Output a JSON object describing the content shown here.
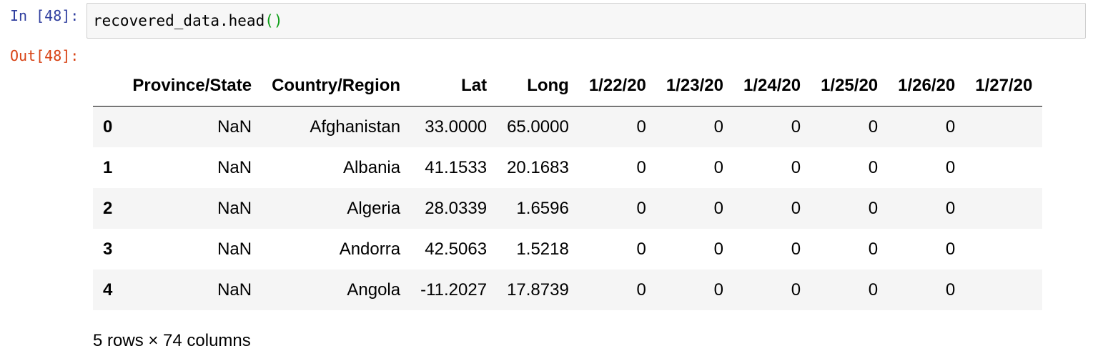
{
  "input_prompt": "In [48]:",
  "output_prompt": "Out[48]:",
  "code": {
    "prefix": "recovered_data.head",
    "parens": "()"
  },
  "table": {
    "columns": [
      "",
      "Province/State",
      "Country/Region",
      "Lat",
      "Long",
      "1/22/20",
      "1/23/20",
      "1/24/20",
      "1/25/20",
      "1/26/20",
      "1/27/20"
    ],
    "rows": [
      [
        "0",
        "NaN",
        "Afghanistan",
        "33.0000",
        "65.0000",
        "0",
        "0",
        "0",
        "0",
        "0",
        ""
      ],
      [
        "1",
        "NaN",
        "Albania",
        "41.1533",
        "20.1683",
        "0",
        "0",
        "0",
        "0",
        "0",
        ""
      ],
      [
        "2",
        "NaN",
        "Algeria",
        "28.0339",
        "1.6596",
        "0",
        "0",
        "0",
        "0",
        "0",
        ""
      ],
      [
        "3",
        "NaN",
        "Andorra",
        "42.5063",
        "1.5218",
        "0",
        "0",
        "0",
        "0",
        "0",
        ""
      ],
      [
        "4",
        "NaN",
        "Angola",
        "-11.2027",
        "17.8739",
        "0",
        "0",
        "0",
        "0",
        "0",
        ""
      ]
    ]
  },
  "summary": "5 rows × 74 columns"
}
